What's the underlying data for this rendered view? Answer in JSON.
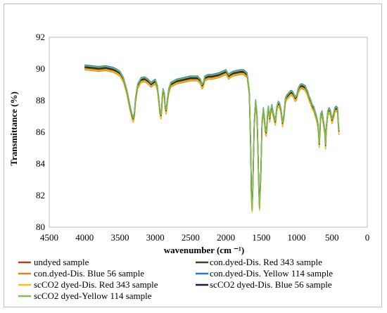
{
  "chart_data": {
    "type": "line",
    "title": "",
    "xlabel": "wavenumber (cm ⁻¹)",
    "ylabel": "Transmittance (%)",
    "xlim": [
      4500,
      0
    ],
    "ylim": [
      80,
      92
    ],
    "x_ticks": [
      4500,
      4000,
      3500,
      3000,
      2500,
      2000,
      1500,
      1000,
      500,
      0
    ],
    "y_ticks": [
      80,
      82,
      84,
      86,
      88,
      90,
      92
    ],
    "x_tick_labels": [
      "4500",
      "4000",
      "3500",
      "3000",
      "2500",
      "2000",
      "1500",
      "1000",
      "500",
      "0"
    ],
    "y_tick_labels": [
      "80",
      "82",
      "84",
      "86",
      "88",
      "90",
      "92"
    ],
    "grid": false,
    "legend_position": "bottom",
    "base_spectrum": {
      "x": [
        4000,
        3900,
        3800,
        3700,
        3650,
        3600,
        3550,
        3500,
        3450,
        3400,
        3360,
        3330,
        3310,
        3295,
        3280,
        3250,
        3200,
        3150,
        3100,
        3060,
        3030,
        3000,
        2970,
        2950,
        2935,
        2920,
        2910,
        2900,
        2890,
        2870,
        2860,
        2845,
        2830,
        2810,
        2780,
        2700,
        2600,
        2500,
        2400,
        2360,
        2340,
        2320,
        2300,
        2250,
        2200,
        2100,
        2000,
        1960,
        1940,
        1900,
        1850,
        1800,
        1750,
        1700,
        1670,
        1650,
        1640,
        1630,
        1620,
        1600,
        1580,
        1560,
        1545,
        1535,
        1525,
        1505,
        1490,
        1470,
        1460,
        1440,
        1430,
        1420,
        1410,
        1400,
        1380,
        1370,
        1350,
        1330,
        1300,
        1280,
        1260,
        1240,
        1220,
        1200,
        1180,
        1160,
        1140,
        1120,
        1100,
        1080,
        1060,
        1040,
        1020,
        1000,
        980,
        960,
        940,
        920,
        900,
        880,
        860,
        840,
        820,
        800,
        780,
        760,
        740,
        720,
        700,
        690,
        680,
        670,
        660,
        640,
        620,
        600,
        590,
        580,
        560,
        540,
        520,
        500,
        480,
        460,
        440,
        420,
        410,
        400
      ],
      "y": [
        90.1,
        90.05,
        90.0,
        90.05,
        90.0,
        89.95,
        89.85,
        89.7,
        89.3,
        88.5,
        87.6,
        87.0,
        86.8,
        87.1,
        88.0,
        88.9,
        89.3,
        89.35,
        89.2,
        89.0,
        89.1,
        89.2,
        88.8,
        88.0,
        87.3,
        87.0,
        87.4,
        88.2,
        88.6,
        88.3,
        87.6,
        87.3,
        87.9,
        88.6,
        89.0,
        89.2,
        89.3,
        89.4,
        89.4,
        89.2,
        88.9,
        89.0,
        89.4,
        89.5,
        89.5,
        89.6,
        89.8,
        89.5,
        89.6,
        89.7,
        89.75,
        89.8,
        89.8,
        89.6,
        88.5,
        85.0,
        82.0,
        81.2,
        82.5,
        86.5,
        87.9,
        87.0,
        84.5,
        82.5,
        81.3,
        83.5,
        86.5,
        87.4,
        87.0,
        86.0,
        85.9,
        86.4,
        87.2,
        87.5,
        86.8,
        87.2,
        87.6,
        87.1,
        86.6,
        87.5,
        87.8,
        87.7,
        87.3,
        86.5,
        87.0,
        88.0,
        88.2,
        88.3,
        88.4,
        88.5,
        88.45,
        88.3,
        88.1,
        88.2,
        88.6,
        88.8,
        88.9,
        88.9,
        88.85,
        88.8,
        88.6,
        88.4,
        88.1,
        87.9,
        87.6,
        87.5,
        87.2,
        86.9,
        86.5,
        86.0,
        85.2,
        86.0,
        87.0,
        87.2,
        86.6,
        86.0,
        85.1,
        86.2,
        87.2,
        87.4,
        87.2,
        86.7,
        87.0,
        87.4,
        87.5,
        87.4,
        86.5,
        86.0
      ]
    },
    "series": [
      {
        "name": "undyed sample",
        "color": "#c0392b",
        "y_offset": -0.05
      },
      {
        "name": "con.dyed-Dis. Red 343 sample",
        "color": "#2e4d1a",
        "y_offset": 0.0
      },
      {
        "name": "con.dyed-Dis. Blue 56 sample",
        "color": "#e67e22",
        "y_offset": -0.15
      },
      {
        "name": "con.dyed-Dis. Yellow 114 sample",
        "color": "#2e75d6",
        "y_offset": 0.15
      },
      {
        "name": "scCO2 dyed-Dis. Red 343 sample",
        "color": "#f1c40f",
        "y_offset": -0.1
      },
      {
        "name": "scCO2 dyed-Dis. Blue 56 sample",
        "color": "#1a1a4d",
        "y_offset": 0.05
      },
      {
        "name": "scCO2 dyed-Yellow 114 sample",
        "color": "#7dc24b",
        "y_offset": 0.1
      }
    ]
  }
}
